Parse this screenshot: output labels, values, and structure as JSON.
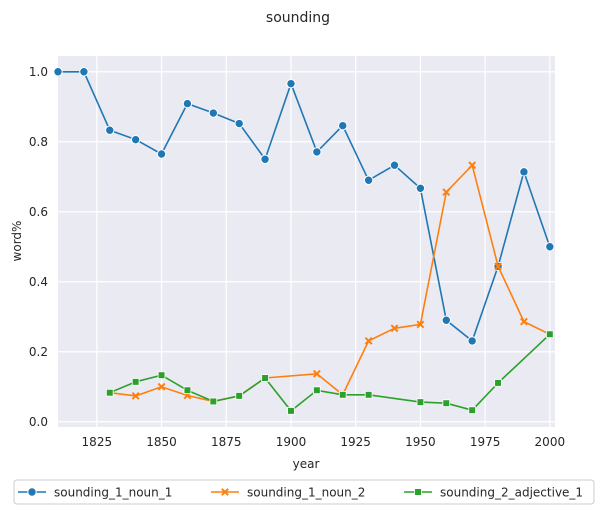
{
  "chart_data": {
    "type": "line",
    "title": "sounding",
    "xlabel": "year",
    "ylabel": "word%",
    "xlim": [
      1810,
      2002
    ],
    "ylim": [
      -0.015,
      1.045
    ],
    "xticks": [
      1825,
      1850,
      1875,
      1900,
      1925,
      1950,
      1975,
      2000
    ],
    "yticks": [
      0.0,
      0.2,
      0.4,
      0.6,
      0.8,
      1.0
    ],
    "ytick_labels": [
      "0.0",
      "0.2",
      "0.4",
      "0.6",
      "0.8",
      "1.0"
    ],
    "grid": true,
    "legend_position": "bottom",
    "series": [
      {
        "name": "sounding_1_noun_1",
        "color": "#1f77b4",
        "marker": "circle",
        "x": [
          1810,
          1820,
          1830,
          1840,
          1850,
          1860,
          1870,
          1880,
          1890,
          1900,
          1910,
          1920,
          1930,
          1940,
          1950,
          1960,
          1970,
          1980,
          1990,
          2000
        ],
        "y": [
          1.0,
          1.0,
          0.833,
          0.806,
          0.765,
          0.909,
          0.882,
          0.852,
          0.75,
          0.966,
          0.771,
          0.846,
          0.69,
          0.733,
          0.667,
          0.29,
          0.231,
          0.444,
          0.714,
          0.5
        ]
      },
      {
        "name": "sounding_1_noun_2",
        "color": "#ff7f0e",
        "marker": "x",
        "x": [
          1830,
          1840,
          1850,
          1860,
          1870,
          1880,
          1890,
          1910,
          1920,
          1930,
          1940,
          1950,
          1960,
          1970,
          1980,
          1990,
          2000
        ],
        "y": [
          0.083,
          0.074,
          0.1,
          0.075,
          0.058,
          0.074,
          0.125,
          0.137,
          0.077,
          0.231,
          0.267,
          0.278,
          0.656,
          0.733,
          0.444,
          0.286,
          0.25
        ]
      },
      {
        "name": "sounding_2_adjective_1",
        "color": "#2ca02c",
        "marker": "square",
        "x": [
          1830,
          1840,
          1850,
          1860,
          1870,
          1880,
          1890,
          1900,
          1910,
          1920,
          1930,
          1950,
          1960,
          1970,
          1980,
          2000
        ],
        "y": [
          0.083,
          0.114,
          0.133,
          0.09,
          0.058,
          0.074,
          0.125,
          0.031,
          0.09,
          0.077,
          0.077,
          0.056,
          0.053,
          0.033,
          0.111,
          0.25
        ]
      }
    ]
  }
}
